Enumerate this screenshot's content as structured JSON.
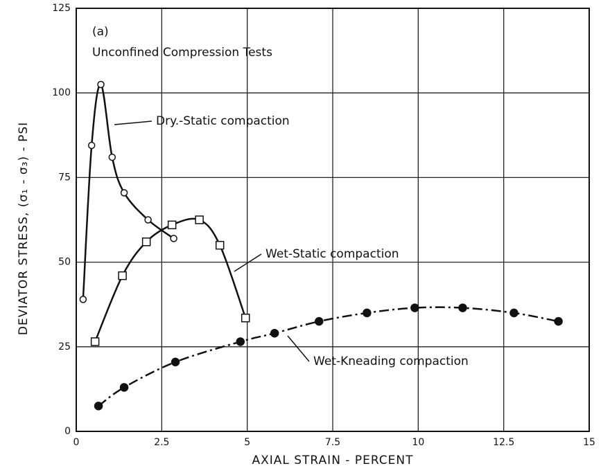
{
  "chart_data": {
    "type": "line",
    "title": "(a)",
    "subtitle": "Unconfined Compression Tests",
    "x_label": "AXIAL STRAIN - PERCENT",
    "y_label": "DEVIATOR STRESS, (σ₁ - σ₃) - PSI",
    "xlim": [
      0,
      15
    ],
    "xticks": [
      0,
      2.5,
      5,
      7.5,
      10,
      12.5,
      15
    ],
    "ylim": [
      0,
      125
    ],
    "yticks": [
      0,
      25,
      50,
      75,
      100,
      125
    ],
    "grid": true,
    "series": [
      {
        "name": "Dry.-Static compaction",
        "color": "#111111",
        "marker": "circle",
        "dash": false,
        "x": [
          0.2,
          0.45,
          0.72,
          1.05,
          1.4,
          2.1,
          2.85
        ],
        "values": [
          39,
          84.5,
          102.5,
          81,
          70.5,
          62.5,
          57
        ]
      },
      {
        "name": "Wet-Static compaction",
        "color": "#111111",
        "marker": "square",
        "dash": false,
        "x": [
          0.55,
          1.35,
          2.05,
          2.8,
          3.6,
          4.2,
          4.95
        ],
        "values": [
          26.5,
          46,
          56,
          61,
          62.5,
          55,
          33.5
        ]
      },
      {
        "name": "Wet-Kneading compaction",
        "color": "#111111",
        "marker": "filled-circle",
        "dash": true,
        "x": [
          0.65,
          1.4,
          2.9,
          4.8,
          5.8,
          7.1,
          8.5,
          9.9,
          11.3,
          12.8,
          14.1
        ],
        "values": [
          7.5,
          13,
          20.5,
          26.5,
          29,
          32.5,
          35,
          36.5,
          36.5,
          35,
          32.5
        ]
      }
    ]
  }
}
